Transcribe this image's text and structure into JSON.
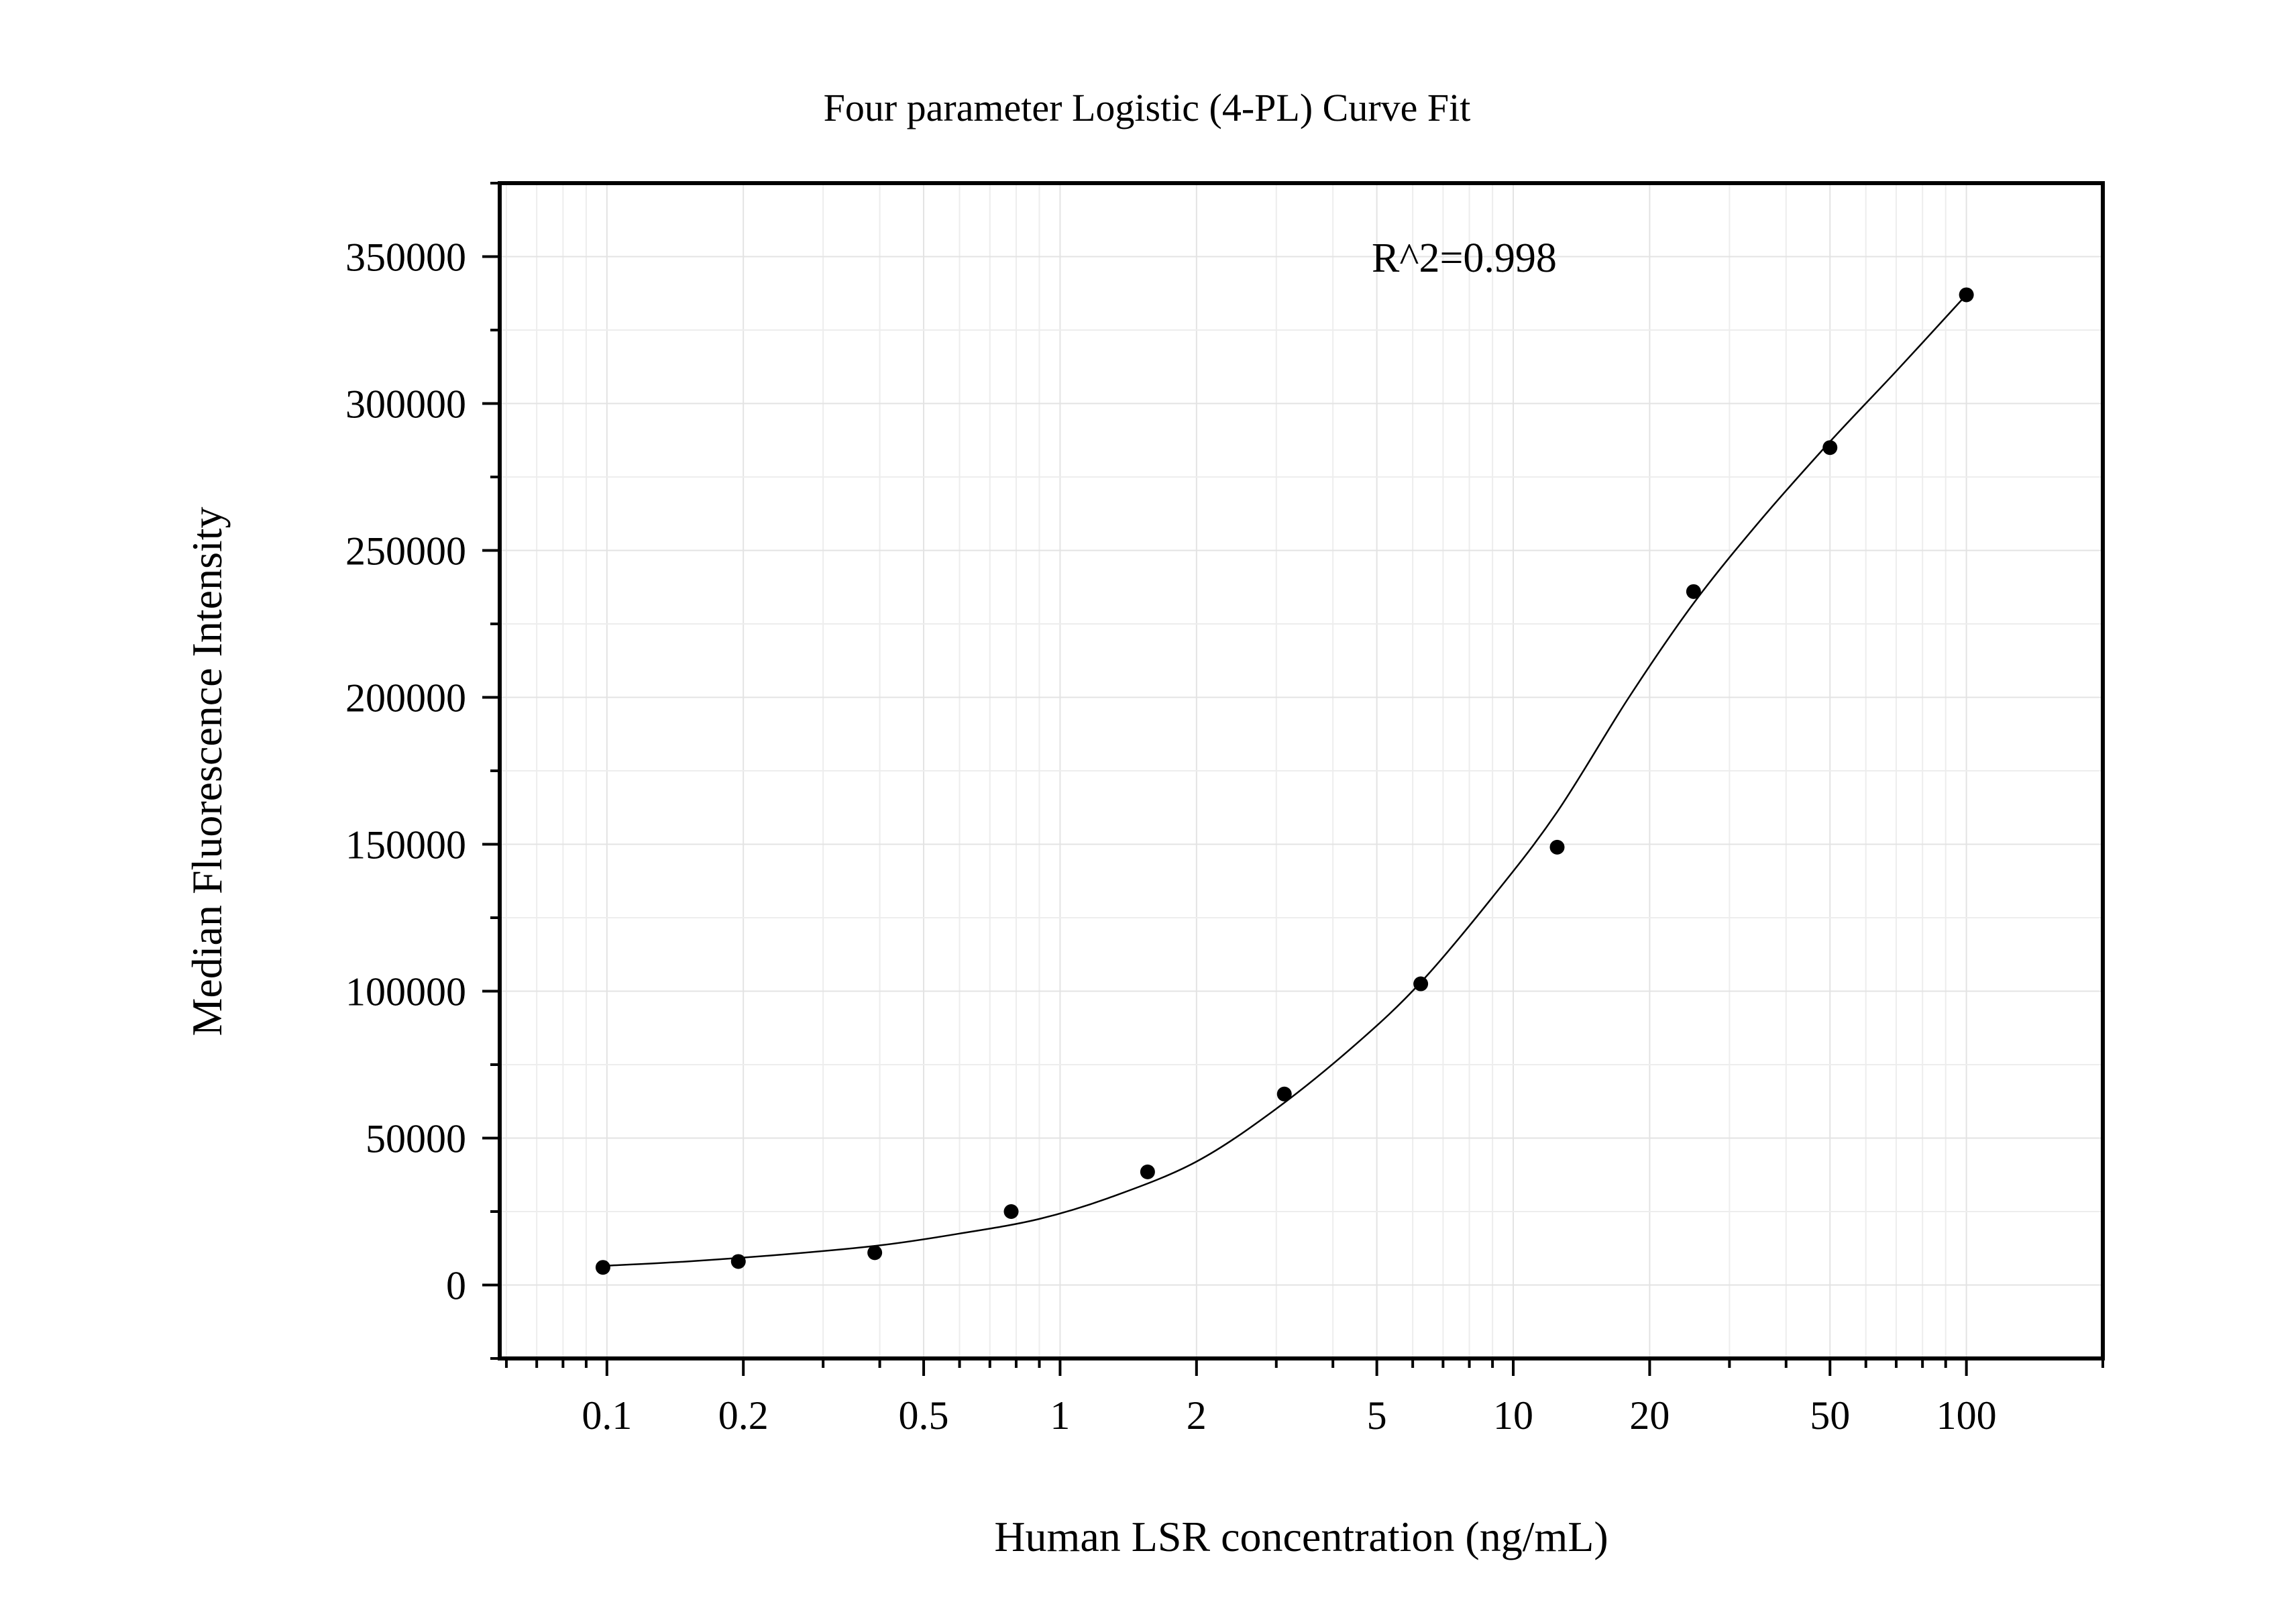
{
  "chart_data": {
    "type": "scatter",
    "title": "Four parameter Logistic (4-PL) Curve Fit",
    "xlabel": "Human LSR concentration (ng/mL)",
    "ylabel": "Median Fluorescence Intensity",
    "x_scale": "log",
    "xlim": [
      0.058,
      200
    ],
    "ylim": [
      -25000,
      375000
    ],
    "x_ticks": [
      0.1,
      0.2,
      0.5,
      1,
      2,
      5,
      10,
      20,
      50,
      100
    ],
    "x_tick_labels": [
      "0.1",
      "0.2",
      "0.5",
      "1",
      "2",
      "5",
      "10",
      "20",
      "50",
      "100"
    ],
    "y_ticks": [
      0,
      50000,
      100000,
      150000,
      200000,
      250000,
      300000,
      350000
    ],
    "y_tick_labels": [
      "0",
      "50000",
      "100000",
      "150000",
      "200000",
      "250000",
      "300000",
      "350000"
    ],
    "grid": true,
    "annotation": "R^2=0.998",
    "points": {
      "x": [
        0.098,
        0.195,
        0.39,
        0.78,
        1.56,
        3.125,
        6.25,
        12.5,
        25,
        50,
        100
      ],
      "y": [
        6000,
        8000,
        11000,
        25000,
        38500,
        65000,
        102500,
        149000,
        236000,
        285000,
        337000
      ]
    },
    "fit_curve": {
      "model": "4-PL",
      "x": [
        0.098,
        0.15,
        0.25,
        0.4,
        0.6,
        0.9,
        1.3,
        2.0,
        3.0,
        4.5,
        6.25,
        9.0,
        12.5,
        18.0,
        25.0,
        35.0,
        50.0,
        70.0,
        100.0
      ],
      "y": [
        6500,
        8000,
        10500,
        13500,
        17500,
        22500,
        30000,
        42000,
        60000,
        82000,
        103000,
        132000,
        161000,
        200000,
        232000,
        260000,
        287000,
        311000,
        337000
      ]
    }
  }
}
